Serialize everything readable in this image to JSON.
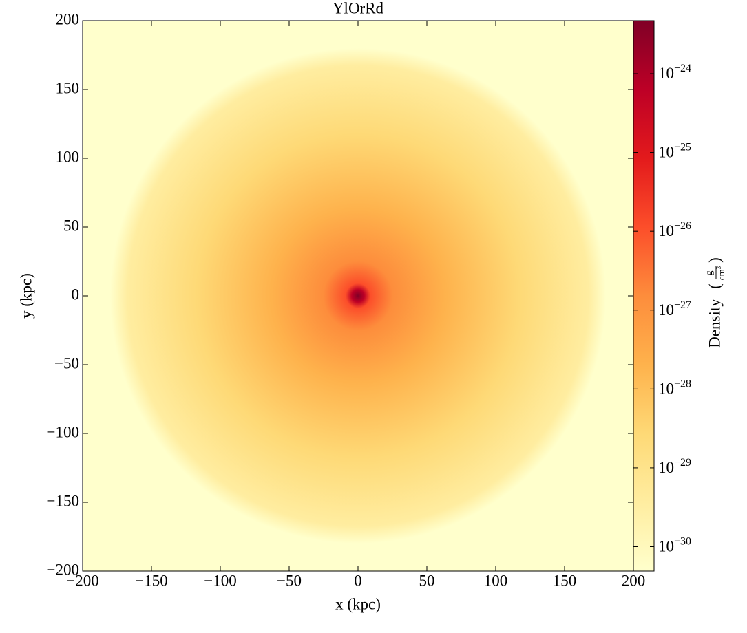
{
  "chart_data": {
    "type": "image",
    "title": "YlOrRd",
    "x_label": "x  (kpc)",
    "y_label": "y  (kpc)",
    "xlim": [
      -200,
      200
    ],
    "ylim": [
      -200,
      200
    ],
    "xticks": [
      {
        "value": -200,
        "label": "−200"
      },
      {
        "value": -150,
        "label": "−150"
      },
      {
        "value": -100,
        "label": "−100"
      },
      {
        "value": -50,
        "label": "−50"
      },
      0,
      50,
      100,
      150,
      200
    ],
    "yticks": [
      {
        "value": -200,
        "label": "−200"
      },
      {
        "value": -150,
        "label": "−150"
      },
      {
        "value": -100,
        "label": "−100"
      },
      {
        "value": -50,
        "label": "−50"
      },
      0,
      50,
      100,
      150,
      200
    ],
    "colorbar_label": "Density",
    "colorbar_units": {
      "numerator": "g",
      "denominator": "cm3"
    },
    "colorbar_log": true,
    "clim": [
      4.9e-31,
      4.7e-24
    ],
    "colorbar_ticks": [
      {
        "value": 1e-30,
        "label": "10−30"
      },
      {
        "value": 1e-29,
        "label": "10−29"
      },
      {
        "value": 1e-28,
        "label": "10−28"
      },
      {
        "value": 1e-27,
        "label": "10−27"
      },
      {
        "value": 1e-26,
        "label": "10−26"
      },
      {
        "value": 1e-25,
        "label": "10−25"
      },
      {
        "value": 1e-24,
        "label": "10−24"
      }
    ],
    "colormap": [
      "#ffffcc",
      "#ffeda0",
      "#fed976",
      "#feb24c",
      "#fd8d3c",
      "#fc4e2a",
      "#e31a1c",
      "#bd0026",
      "#800026"
    ]
  }
}
